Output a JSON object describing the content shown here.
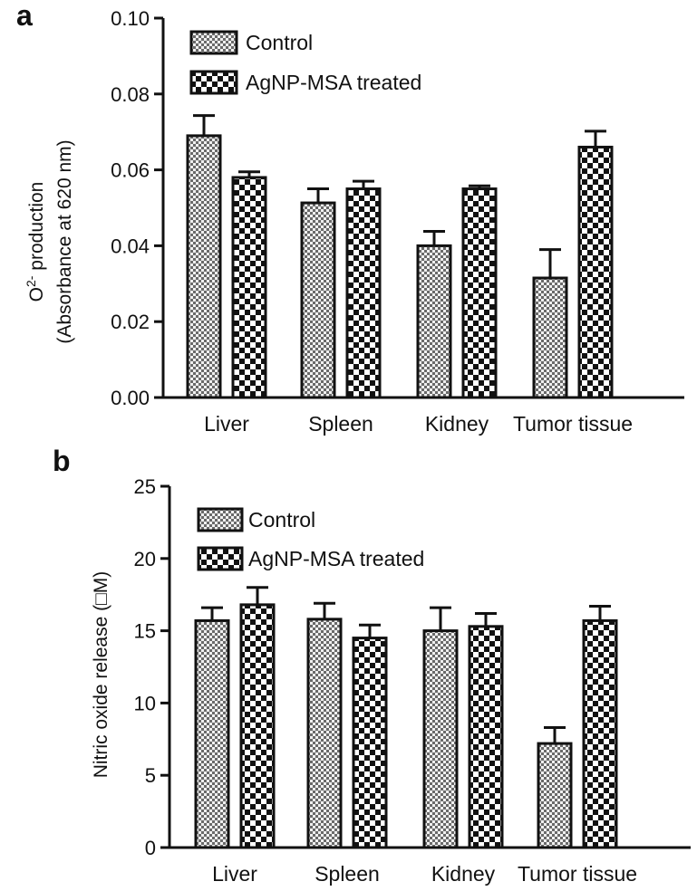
{
  "chart_data": [
    {
      "type": "bar",
      "panel_label": "a",
      "categories": [
        "Liver",
        "Spleen",
        "Kidney",
        "Tumor tissue"
      ],
      "ylabel_line1_main": "O",
      "ylabel_line1_sup": "2-",
      "ylabel_line1_rest": " production",
      "ylabel_line2": "(Absorbance at 620 nm)",
      "ylim": [
        0,
        0.1
      ],
      "ytick_values": [
        0,
        0.02,
        0.04,
        0.06,
        0.08,
        0.1
      ],
      "ytick_labels": [
        "0.00",
        "0.02",
        "0.04",
        "0.06",
        "0.08",
        "0.10"
      ],
      "legend_position": "top-left",
      "series": [
        {
          "name": "Control",
          "pattern": "fine-check",
          "values": [
            0.069,
            0.0513,
            0.04,
            0.0315
          ],
          "errors": [
            0.0053,
            0.0037,
            0.0038,
            0.0075
          ]
        },
        {
          "name": "AgNP-MSA treated",
          "pattern": "coarse-check",
          "values": [
            0.058,
            0.055,
            0.055,
            0.066
          ],
          "errors": [
            0.0015,
            0.002,
            0.0008,
            0.0042
          ]
        }
      ]
    },
    {
      "type": "bar",
      "panel_label": "b",
      "categories": [
        "Liver",
        "Spleen",
        "Kidney",
        "Tumor tissue"
      ],
      "ylabel": "Nitric oxide release (□M)",
      "ylim": [
        0,
        25
      ],
      "ytick_values": [
        0,
        5,
        10,
        15,
        20,
        25
      ],
      "ytick_labels": [
        "0",
        "5",
        "10",
        "15",
        "20",
        "25"
      ],
      "legend_position": "top-left",
      "series": [
        {
          "name": "Control",
          "pattern": "fine-check",
          "values": [
            15.7,
            15.8,
            15.0,
            7.2
          ],
          "errors": [
            0.9,
            1.1,
            1.6,
            1.1
          ]
        },
        {
          "name": "AgNP-MSA treated",
          "pattern": "coarse-check",
          "values": [
            16.8,
            14.5,
            15.3,
            15.7
          ],
          "errors": [
            1.2,
            0.9,
            0.9,
            1.0
          ]
        }
      ]
    }
  ]
}
